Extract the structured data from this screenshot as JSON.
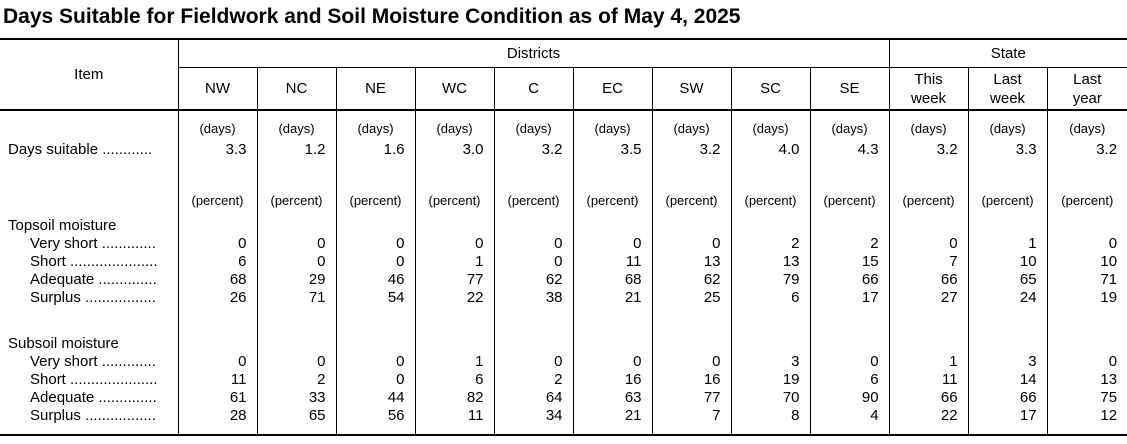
{
  "title": "Days Suitable for Fieldwork and Soil Moisture Condition as of May 4, 2025",
  "table": {
    "item_header": "Item",
    "districts_header": "Districts",
    "state_header": "State",
    "district_columns": [
      "NW",
      "NC",
      "NE",
      "WC",
      "C",
      "EC",
      "SW",
      "SC",
      "SE"
    ],
    "state_columns": [
      "This\nweek",
      "Last\nweek",
      "Last\nyear"
    ],
    "body": [
      {
        "type": "unit",
        "unit": "(days)"
      },
      {
        "type": "data",
        "indent": false,
        "label": "Days suitable ............",
        "values": [
          "3.3",
          "1.2",
          "1.6",
          "3.0",
          "3.2",
          "3.5",
          "3.2",
          "4.0",
          "4.3",
          "3.2",
          "3.3",
          "3.2"
        ]
      },
      {
        "type": "spacer"
      },
      {
        "type": "unit",
        "unit": "(percent)"
      },
      {
        "type": "group",
        "label": "Topsoil moisture"
      },
      {
        "type": "data",
        "indent": true,
        "label": "Very short .............",
        "values": [
          "0",
          "0",
          "0",
          "0",
          "0",
          "0",
          "0",
          "2",
          "2",
          "0",
          "1",
          "0"
        ]
      },
      {
        "type": "data",
        "indent": true,
        "label": "Short .....................",
        "values": [
          "6",
          "0",
          "0",
          "1",
          "0",
          "11",
          "13",
          "13",
          "15",
          "7",
          "10",
          "10"
        ]
      },
      {
        "type": "data",
        "indent": true,
        "label": "Adequate ..............",
        "values": [
          "68",
          "29",
          "46",
          "77",
          "62",
          "68",
          "62",
          "79",
          "66",
          "66",
          "65",
          "71"
        ]
      },
      {
        "type": "data",
        "indent": true,
        "label": "Surplus .................",
        "values": [
          "26",
          "71",
          "54",
          "22",
          "38",
          "21",
          "25",
          "6",
          "17",
          "27",
          "24",
          "19"
        ]
      },
      {
        "type": "spacer"
      },
      {
        "type": "group",
        "label": "Subsoil moisture"
      },
      {
        "type": "data",
        "indent": true,
        "label": "Very short .............",
        "values": [
          "0",
          "0",
          "0",
          "1",
          "0",
          "0",
          "0",
          "3",
          "0",
          "1",
          "3",
          "0"
        ]
      },
      {
        "type": "data",
        "indent": true,
        "label": "Short .....................",
        "values": [
          "11",
          "2",
          "0",
          "6",
          "2",
          "16",
          "16",
          "19",
          "6",
          "11",
          "14",
          "13"
        ]
      },
      {
        "type": "data",
        "indent": true,
        "label": "Adequate ..............",
        "values": [
          "61",
          "33",
          "44",
          "82",
          "64",
          "63",
          "77",
          "70",
          "90",
          "66",
          "66",
          "75"
        ]
      },
      {
        "type": "data",
        "indent": true,
        "label": "Surplus .................",
        "values": [
          "28",
          "65",
          "56",
          "11",
          "34",
          "21",
          "7",
          "8",
          "4",
          "22",
          "17",
          "12"
        ]
      },
      {
        "type": "spacer"
      }
    ]
  }
}
